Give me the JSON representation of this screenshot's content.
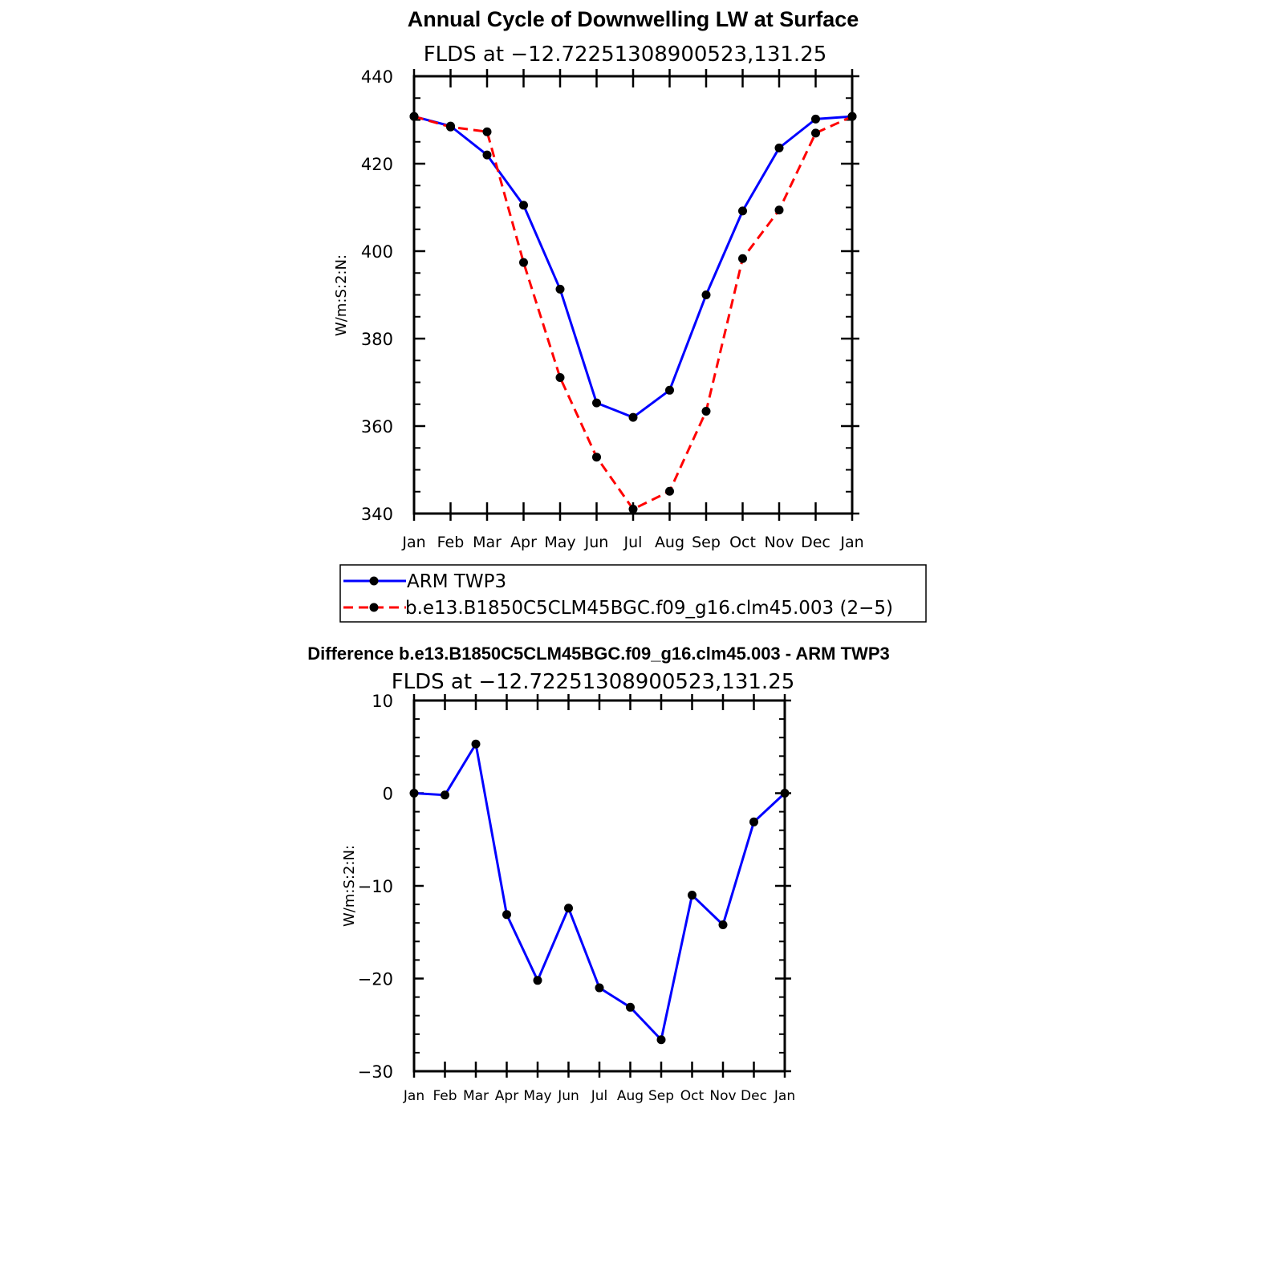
{
  "chart_data": [
    {
      "type": "line",
      "title": "Annual Cycle of Downwelling LW at Surface",
      "subtitle": "FLDS at −12.72251308900523,131.25",
      "xlabel": "",
      "ylabel": "W/m:S:2:N:",
      "ylim": [
        340,
        440
      ],
      "yticks": [
        "340",
        "360",
        "380",
        "400",
        "420",
        "440"
      ],
      "categories": [
        "Jan",
        "Feb",
        "Mar",
        "Apr",
        "May",
        "Jun",
        "Jul",
        "Aug",
        "Sep",
        "Oct",
        "Nov",
        "Dec",
        "Jan"
      ],
      "series": [
        {
          "name": "ARM TWP3",
          "color": "#0000ff",
          "dash": "solid",
          "values": [
            430.8,
            428.6,
            422.0,
            410.5,
            391.3,
            365.3,
            362.0,
            368.2,
            390.0,
            409.2,
            423.6,
            430.2,
            430.8
          ]
        },
        {
          "name": "b.e13.B1850C5CLM45BGC.f09_g16.clm45.003 (2−5)",
          "color": "#ff0000",
          "dash": "dashed",
          "values": [
            430.8,
            428.4,
            427.3,
            397.4,
            371.1,
            352.9,
            341.0,
            345.1,
            363.4,
            398.3,
            409.4,
            427.0,
            430.8
          ]
        }
      ],
      "legend": [
        "ARM TWP3",
        "b.e13.B1850C5CLM45BGC.f09_g16.clm45.003 (2−5)"
      ]
    },
    {
      "type": "line",
      "title": "Difference b.e13.B1850C5CLM45BGC.f09_g16.clm45.003 - ARM TWP3",
      "subtitle": "FLDS at −12.72251308900523,131.25",
      "xlabel": "",
      "ylabel": "W/m:S:2:N:",
      "ylim": [
        -30,
        10
      ],
      "yticks": [
        "−30",
        "−20",
        "−10",
        "0",
        "10"
      ],
      "categories": [
        "Jan",
        "Feb",
        "Mar",
        "Apr",
        "May",
        "Jun",
        "Jul",
        "Aug",
        "Sep",
        "Oct",
        "Nov",
        "Dec",
        "Jan"
      ],
      "series": [
        {
          "name": "Difference",
          "color": "#0000ff",
          "dash": "solid",
          "values": [
            0.0,
            -0.2,
            5.3,
            -13.1,
            -20.2,
            -12.4,
            -21.0,
            -23.1,
            -26.6,
            -11.0,
            -14.2,
            -3.1,
            0.0
          ]
        }
      ]
    }
  ]
}
